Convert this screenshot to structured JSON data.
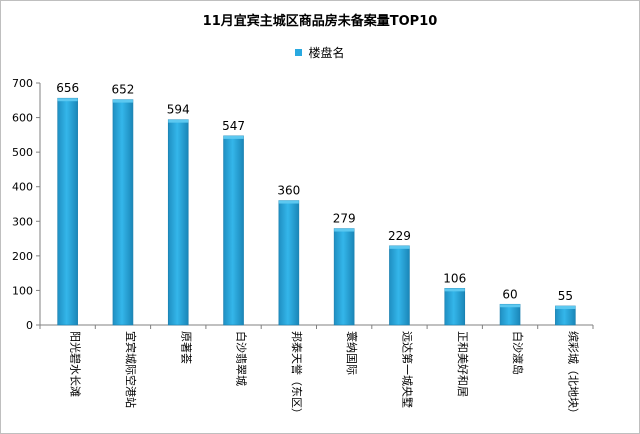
{
  "chart_data": {
    "type": "bar",
    "title": "11月宜宾主城区商品房未备案量TOP10",
    "legend": {
      "label": "楼盘名",
      "position": "top"
    },
    "series": [
      {
        "name": "楼盘名",
        "color": "#29A9E0",
        "values": [
          656,
          652,
          594,
          547,
          360,
          279,
          229,
          106,
          60,
          55
        ]
      }
    ],
    "categories": [
      "阳光碧水长滩",
      "宜宾城际空港站",
      "原著荟",
      "白沙翡翠城",
      "邦泰天誉（东区）",
      "寰纳国际",
      "远达第一城央墅",
      "正和美好和居",
      "白沙渡岛",
      "缤彩城（北地块）"
    ],
    "ylim": [
      0,
      700
    ],
    "yticks": [
      0,
      100,
      200,
      300,
      400,
      500,
      600,
      700
    ],
    "grid": false,
    "xlabel": "",
    "ylabel": ""
  }
}
